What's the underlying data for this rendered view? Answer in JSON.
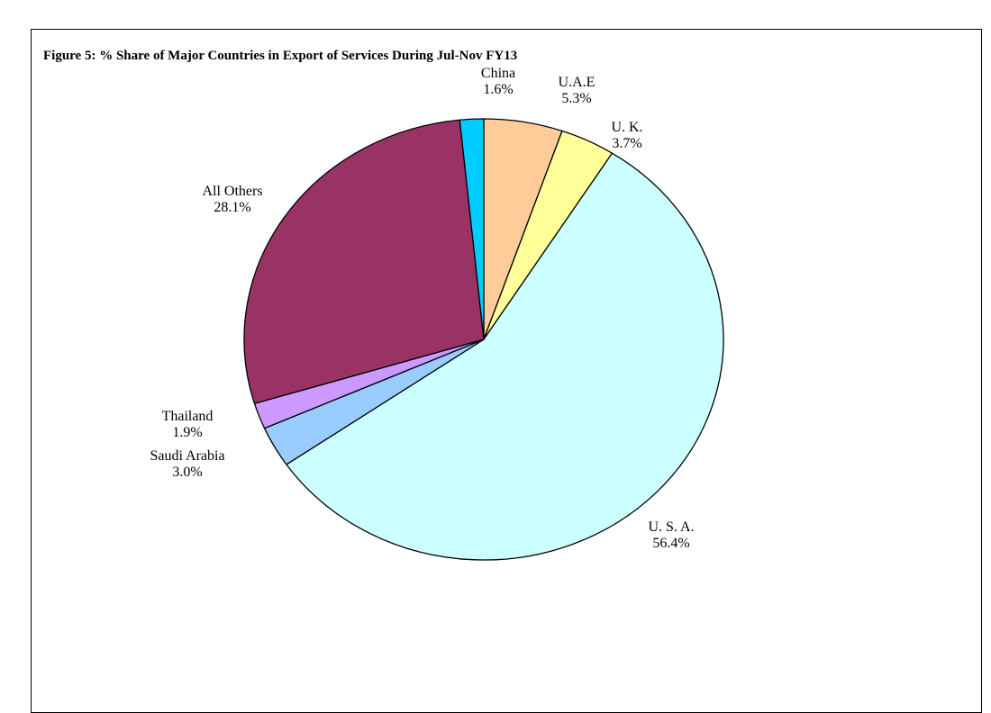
{
  "chart_data": {
    "type": "pie",
    "title": "Figure 5: % Share of Major Countries in Export of Services During Jul-Nov  FY13",
    "slices": [
      {
        "name": "U.A.E",
        "value": 5.3,
        "label": "5.3%",
        "color": "#FFCC99"
      },
      {
        "name": "U. K.",
        "value": 3.7,
        "label": "3.7%",
        "color": "#FFFF99"
      },
      {
        "name": "U. S. A.",
        "value": 56.4,
        "label": "56.4%",
        "color": "#CCFFFF"
      },
      {
        "name": "Saudi Arabia",
        "value": 3.0,
        "label": "3.0%",
        "color": "#99CCFF"
      },
      {
        "name": "Thailand",
        "value": 1.9,
        "label": "1.9%",
        "color": "#CC99FF"
      },
      {
        "name": "All Others",
        "value": 28.1,
        "label": "28.1%",
        "color": "#993366"
      },
      {
        "name": "China",
        "value": 1.6,
        "label": "1.6%",
        "color": "#00CCFF"
      }
    ],
    "start": "12 o'clock",
    "direction": "clockwise",
    "legend": "none"
  }
}
